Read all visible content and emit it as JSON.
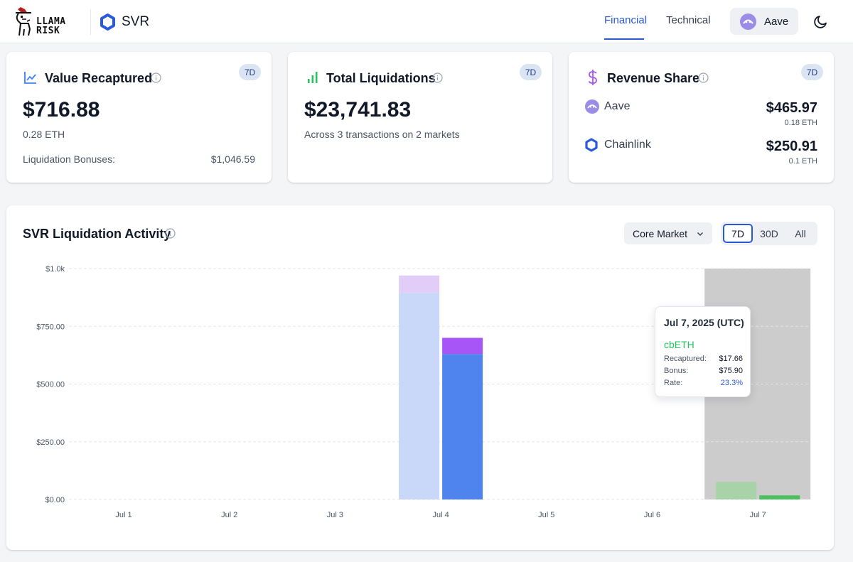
{
  "header": {
    "logo_line1": "LLAMA",
    "logo_line2": "RISK",
    "product": "SVR",
    "tabs": [
      {
        "label": "Financial",
        "active": true
      },
      {
        "label": "Technical",
        "active": false
      }
    ],
    "protocol": "Aave",
    "theme_icon": "moon-icon"
  },
  "cards": {
    "value_recaptured": {
      "title": "Value Recaptured",
      "badge": "7D",
      "value": "$716.88",
      "eth": "0.28 ETH",
      "bonus_label": "Liquidation Bonuses:",
      "bonus_value": "$1,046.59"
    },
    "total_liquidations": {
      "title": "Total Liquidations",
      "badge": "7D",
      "value": "$23,741.83",
      "description": "Across 3 transactions on 2 markets"
    },
    "revenue_share": {
      "title": "Revenue Share",
      "badge": "7D",
      "rows": [
        {
          "name": "Aave",
          "usd": "$465.97",
          "eth": "0.18 ETH"
        },
        {
          "name": "Chainlink",
          "usd": "$250.91",
          "eth": "0.1 ETH"
        }
      ]
    }
  },
  "activity": {
    "title": "SVR Liquidation Activity",
    "market_select": "Core Market",
    "ranges": [
      {
        "label": "7D",
        "active": true
      },
      {
        "label": "30D",
        "active": false
      },
      {
        "label": "All",
        "active": false
      }
    ],
    "tooltip": {
      "date": "Jul 7, 2025 (UTC)",
      "asset": "cbETH",
      "rows": [
        {
          "label": "Recaptured:",
          "value": "$17.66"
        },
        {
          "label": "Bonus:",
          "value": "$75.90"
        },
        {
          "label": "Rate:",
          "value": "23.3%"
        }
      ]
    }
  },
  "colors": {
    "accent": "#2b59d1",
    "bonus_blue_light": "#c9d7f8",
    "bonus_blue": "#4f83ee",
    "recaptured_purple_light": "#e2cdf8",
    "recaptured_purple": "#a855f7",
    "cbeth_green_light": "#a8d3a9",
    "cbeth_green": "#4cc05c",
    "hover_band": "#cccccc"
  },
  "chart_data": {
    "type": "bar",
    "stacked": true,
    "categories": [
      "Jul 1",
      "Jul 2",
      "Jul 3",
      "Jul 4",
      "Jul 5",
      "Jul 6",
      "Jul 7"
    ],
    "y_ticks": [
      "$0.00",
      "$250.00",
      "$500.00",
      "$750.00",
      "$1.0k"
    ],
    "ylim": [
      0,
      1000
    ],
    "grid": true,
    "hovered_category": "Jul 7",
    "bars": [
      {
        "category": "Jul 4",
        "group": "bonus",
        "segments": [
          {
            "series": "Liquidation Bonus",
            "value": 895,
            "color": "#c9d7f8"
          },
          {
            "series": "Value Recaptured",
            "value": 75,
            "color": "#e2cdf8"
          }
        ]
      },
      {
        "category": "Jul 4",
        "group": "recaptured",
        "segments": [
          {
            "series": "Liquidation Bonus",
            "value": 630,
            "color": "#4f83ee"
          },
          {
            "series": "Value Recaptured",
            "value": 70,
            "color": "#a855f7"
          }
        ]
      },
      {
        "category": "Jul 7",
        "group": "bonus",
        "segments": [
          {
            "series": "cbETH Bonus",
            "value": 75.9,
            "color": "#a8d3a9"
          }
        ]
      },
      {
        "category": "Jul 7",
        "group": "recaptured",
        "segments": [
          {
            "series": "cbETH Recaptured",
            "value": 17.66,
            "color": "#4cc05c"
          }
        ]
      }
    ]
  }
}
